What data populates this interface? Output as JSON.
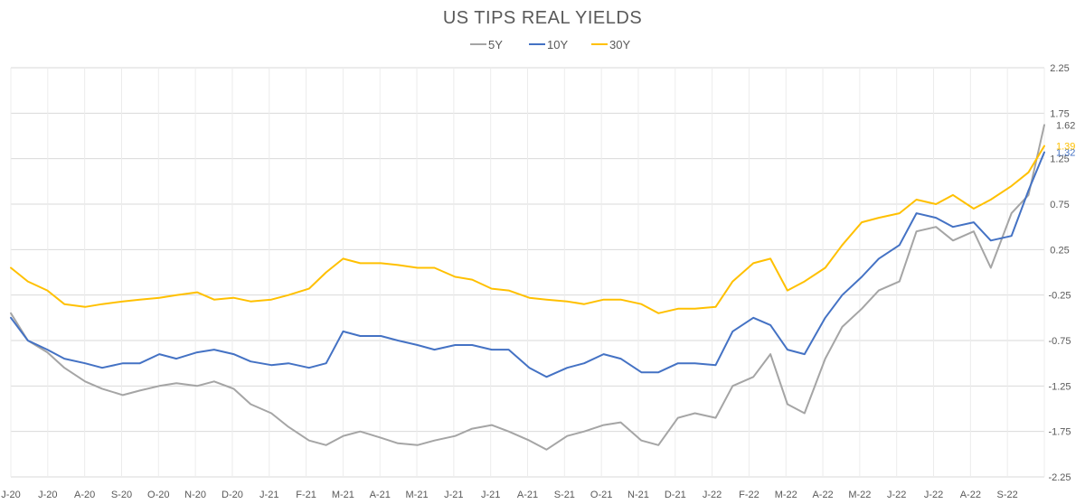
{
  "chart_data": {
    "type": "line",
    "title": "US TIPS REAL YIELDS",
    "legend": {
      "placement": "top-center"
    },
    "x_tick_labels": [
      "J-20",
      "J-20",
      "A-20",
      "S-20",
      "O-20",
      "N-20",
      "D-20",
      "J-21",
      "F-21",
      "M-21",
      "A-21",
      "M-21",
      "J-21",
      "J-21",
      "A-21",
      "S-21",
      "O-21",
      "N-21",
      "D-21",
      "J-22",
      "F-22",
      "M-22",
      "A-22",
      "M-22",
      "J-22",
      "J-22",
      "A-22",
      "S-22"
    ],
    "y_ticks": [
      2.25,
      1.75,
      1.25,
      0.75,
      0.25,
      -0.25,
      -0.75,
      -1.25,
      -1.75,
      -2.25
    ],
    "y_tick_labels": [
      "2.25",
      "1.75",
      "1.25",
      "0.75",
      "0.25",
      "-0.25",
      "-0.75",
      "-1.25",
      "-1.75",
      "-2.25"
    ],
    "ylim": [
      -2.25,
      2.25
    ],
    "y_axis_position": "right",
    "grid": {
      "horizontal": true,
      "vertical": true
    },
    "x": [
      "2020-06-01",
      "2020-06-15",
      "2020-07-01",
      "2020-07-15",
      "2020-08-01",
      "2020-08-15",
      "2020-09-01",
      "2020-09-15",
      "2020-10-01",
      "2020-10-15",
      "2020-11-01",
      "2020-11-15",
      "2020-12-01",
      "2020-12-15",
      "2021-01-01",
      "2021-01-15",
      "2021-02-01",
      "2021-02-15",
      "2021-03-01",
      "2021-03-15",
      "2021-04-01",
      "2021-04-15",
      "2021-05-01",
      "2021-05-15",
      "2021-06-01",
      "2021-06-15",
      "2021-07-01",
      "2021-07-15",
      "2021-08-01",
      "2021-08-15",
      "2021-09-01",
      "2021-09-15",
      "2021-10-01",
      "2021-10-15",
      "2021-11-01",
      "2021-11-15",
      "2021-12-01",
      "2021-12-15",
      "2022-01-01",
      "2022-01-15",
      "2022-02-01",
      "2022-02-15",
      "2022-03-01",
      "2022-03-15",
      "2022-04-01",
      "2022-04-15",
      "2022-05-01",
      "2022-05-15",
      "2022-06-01",
      "2022-06-15",
      "2022-07-01",
      "2022-07-15",
      "2022-08-01",
      "2022-08-15",
      "2022-09-01",
      "2022-09-15",
      "2022-09-28"
    ],
    "series": [
      {
        "name": "5Y",
        "color": "#a5a5a5",
        "end_label": "1.62",
        "values": [
          -0.45,
          -0.75,
          -0.88,
          -1.05,
          -1.2,
          -1.28,
          -1.35,
          -1.3,
          -1.25,
          -1.22,
          -1.25,
          -1.2,
          -1.28,
          -1.45,
          -1.55,
          -1.7,
          -1.85,
          -1.9,
          -1.8,
          -1.75,
          -1.82,
          -1.88,
          -1.9,
          -1.85,
          -1.8,
          -1.72,
          -1.68,
          -1.75,
          -1.85,
          -1.95,
          -1.8,
          -1.75,
          -1.68,
          -1.65,
          -1.85,
          -1.9,
          -1.6,
          -1.55,
          -1.6,
          -1.25,
          -1.15,
          -0.9,
          -1.45,
          -1.55,
          -0.95,
          -0.6,
          -0.4,
          -0.2,
          -0.1,
          0.45,
          0.5,
          0.35,
          0.45,
          0.05,
          0.65,
          0.85,
          1.62
        ]
      },
      {
        "name": "10Y",
        "color": "#4472c4",
        "end_label": "1.32",
        "values": [
          -0.5,
          -0.75,
          -0.85,
          -0.95,
          -1.0,
          -1.05,
          -1.0,
          -1.0,
          -0.9,
          -0.95,
          -0.88,
          -0.85,
          -0.9,
          -0.98,
          -1.02,
          -1.0,
          -1.05,
          -1.0,
          -0.65,
          -0.7,
          -0.7,
          -0.75,
          -0.8,
          -0.85,
          -0.8,
          -0.8,
          -0.85,
          -0.85,
          -1.05,
          -1.15,
          -1.05,
          -1.0,
          -0.9,
          -0.95,
          -1.1,
          -1.1,
          -1.0,
          -1.0,
          -1.02,
          -0.65,
          -0.5,
          -0.58,
          -0.85,
          -0.9,
          -0.5,
          -0.25,
          -0.05,
          0.15,
          0.3,
          0.65,
          0.6,
          0.5,
          0.55,
          0.35,
          0.4,
          0.9,
          1.32
        ]
      },
      {
        "name": "30Y",
        "color": "#ffc000",
        "end_label": "1.39",
        "values": [
          0.05,
          -0.1,
          -0.2,
          -0.35,
          -0.38,
          -0.35,
          -0.32,
          -0.3,
          -0.28,
          -0.25,
          -0.22,
          -0.3,
          -0.28,
          -0.32,
          -0.3,
          -0.25,
          -0.18,
          0.0,
          0.15,
          0.1,
          0.1,
          0.08,
          0.05,
          0.05,
          -0.05,
          -0.08,
          -0.18,
          -0.2,
          -0.28,
          -0.3,
          -0.32,
          -0.35,
          -0.3,
          -0.3,
          -0.35,
          -0.45,
          -0.4,
          -0.4,
          -0.38,
          -0.1,
          0.1,
          0.15,
          -0.2,
          -0.1,
          0.05,
          0.3,
          0.55,
          0.6,
          0.65,
          0.8,
          0.75,
          0.85,
          0.7,
          0.8,
          0.95,
          1.1,
          1.39
        ]
      }
    ]
  }
}
